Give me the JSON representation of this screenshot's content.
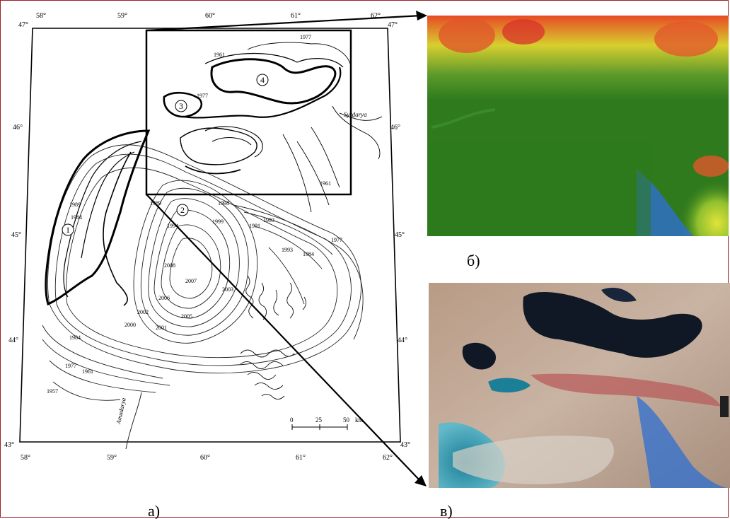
{
  "panels": {
    "a_caption": "а)",
    "b_caption": "б)",
    "c_caption": "в)"
  },
  "map": {
    "lon_top": [
      "58°",
      "59°",
      "60°",
      "61°",
      "62°"
    ],
    "lon_bottom": [
      "58°",
      "59°",
      "60°",
      "61°",
      "62°"
    ],
    "lat_left": [
      "47°",
      "46°",
      "45°",
      "44°",
      "43°"
    ],
    "lat_right": [
      "47°",
      "46°",
      "45°",
      "44°",
      "43°"
    ],
    "basins": [
      "1",
      "2",
      "3",
      "4"
    ],
    "year_labels": [
      "1977",
      "1961",
      "1977",
      "1989",
      "1984",
      "1989",
      "1993",
      "1994",
      "1998",
      "1999",
      "1991",
      "1993",
      "1977",
      "1984",
      "2008",
      "2007",
      "2006",
      "2005",
      "2003",
      "2002",
      "2000",
      "2001",
      "1984",
      "1977",
      "1961",
      "1957",
      "1961"
    ],
    "rivers": [
      "Syrdarya",
      "Amudarya"
    ],
    "scale": {
      "ticks": [
        "0",
        "25",
        "50"
      ],
      "unit": "km"
    }
  }
}
